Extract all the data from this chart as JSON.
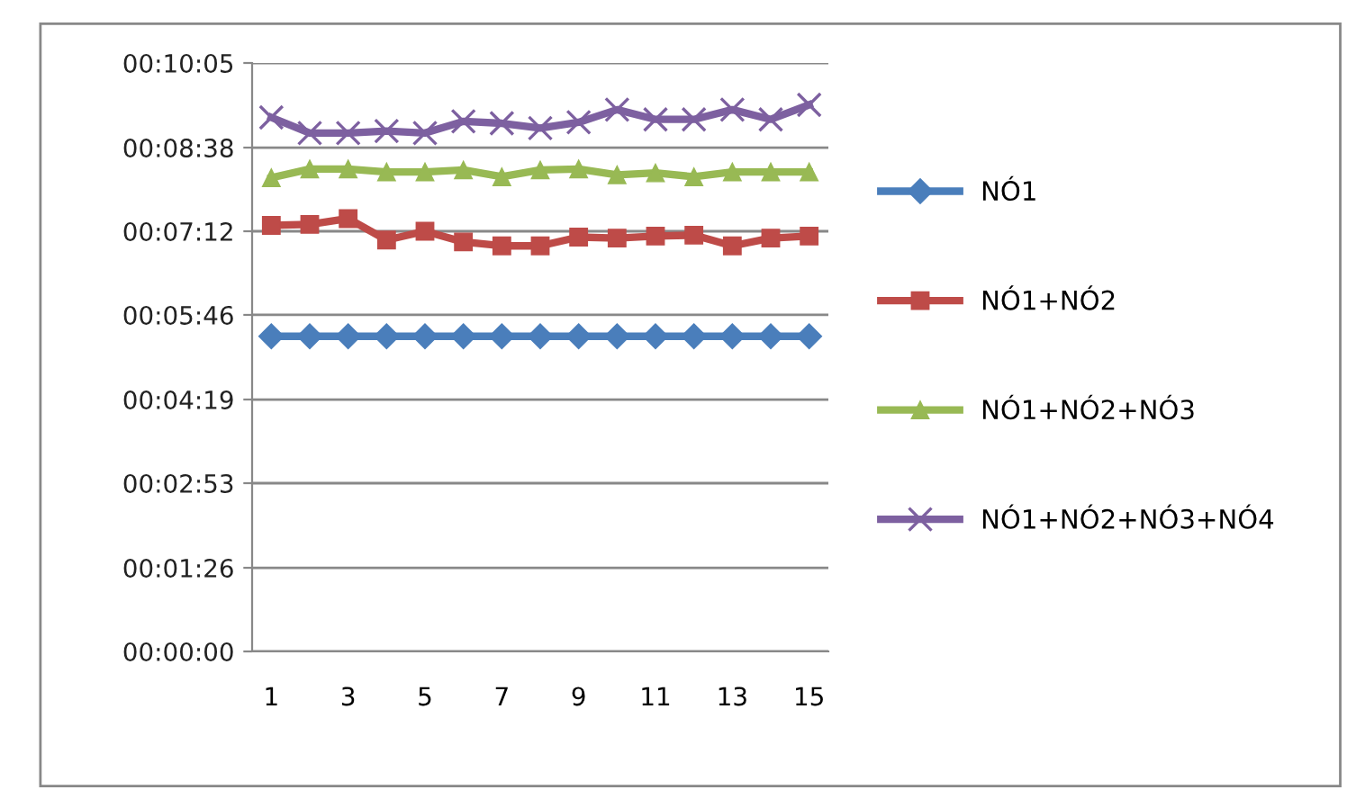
{
  "chart_data": {
    "type": "line",
    "categories": [
      "1",
      null,
      "3",
      null,
      "5",
      null,
      "7",
      null,
      "9",
      null,
      "11",
      null,
      "13",
      null,
      "15"
    ],
    "series": [
      {
        "name": "NÓ1",
        "color": "#4a7ebb",
        "marker": "diamond",
        "values": [
          324,
          324,
          324,
          324,
          324,
          324,
          324,
          324,
          324,
          324,
          324,
          324,
          324,
          324,
          324
        ]
      },
      {
        "name": "NÓ1+NÓ2",
        "color": "#be4b48",
        "marker": "square",
        "values": [
          438,
          439,
          445,
          423,
          432,
          421,
          417,
          417,
          426,
          425,
          427,
          428,
          417,
          425,
          427
        ]
      },
      {
        "name": "NÓ1+NÓ2+NÓ3",
        "color": "#98b954",
        "marker": "triangle",
        "values": [
          487,
          496,
          496,
          493,
          493,
          495,
          488,
          495,
          496,
          490,
          492,
          488,
          493,
          493,
          493
        ]
      },
      {
        "name": "NÓ1+NÓ2+NÓ3+NÓ4",
        "color": "#7d60a0",
        "marker": "cross",
        "values": [
          549,
          533,
          533,
          535,
          533,
          545,
          543,
          538,
          544,
          557,
          547,
          547,
          557,
          547,
          562
        ]
      }
    ],
    "ylim": [
      0,
      605
    ],
    "yticks": [
      {
        "value": 0,
        "label": "00:00:00"
      },
      {
        "value": 86,
        "label": "00:01:26"
      },
      {
        "value": 173,
        "label": "00:02:53"
      },
      {
        "value": 259,
        "label": "00:04:19"
      },
      {
        "value": 346,
        "label": "00:05:46"
      },
      {
        "value": 432,
        "label": "00:07:12"
      },
      {
        "value": 518,
        "label": "00:08:38"
      },
      {
        "value": 605,
        "label": "00:10:05"
      }
    ],
    "grid": "y",
    "legend": "right"
  }
}
